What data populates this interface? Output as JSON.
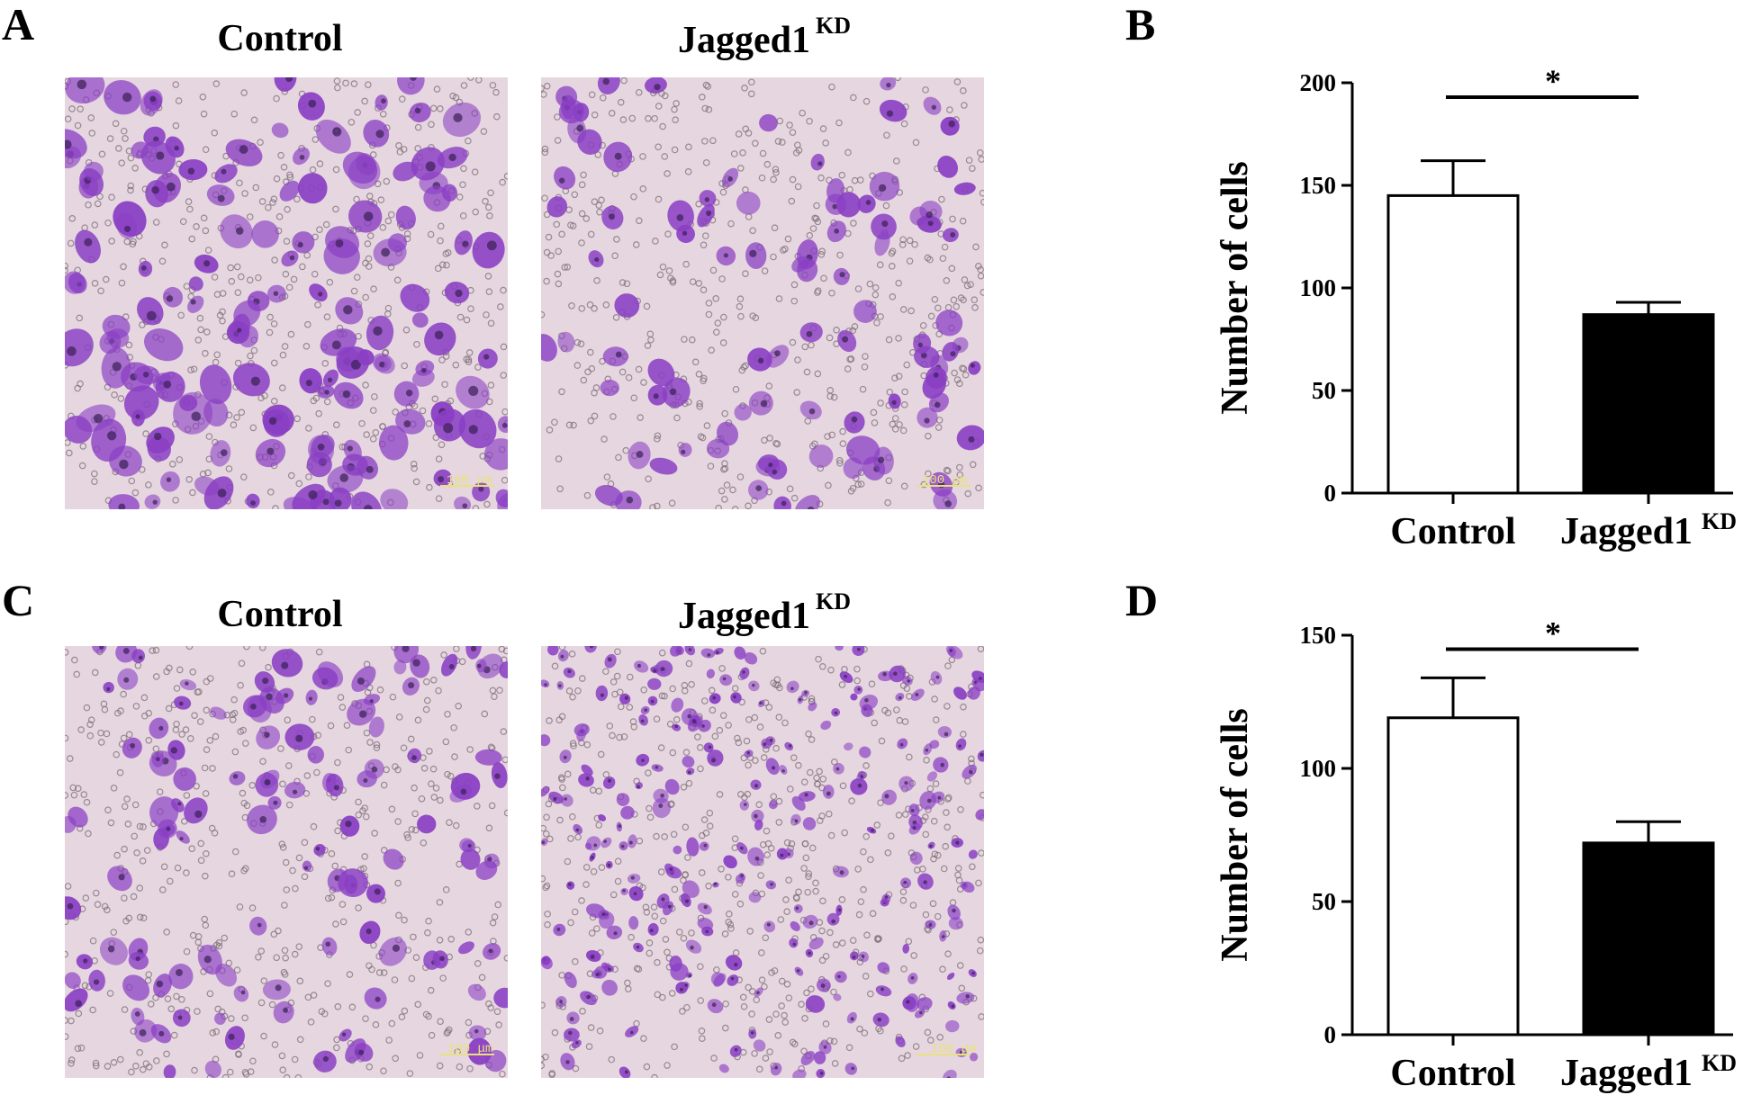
{
  "panels": {
    "A": {
      "letter": "A",
      "left_title": "Control",
      "right_title_main": "Jagged1",
      "right_title_sup": "KD",
      "left_scale": "100 μm",
      "right_scale": "100 μm"
    },
    "C": {
      "letter": "C",
      "left_title": "Control",
      "right_title_main": "Jagged1",
      "right_title_sup": "KD",
      "left_scale": "100 μm",
      "right_scale": "100 μm"
    },
    "B": {
      "letter": "B"
    },
    "D": {
      "letter": "D"
    }
  },
  "colors": {
    "stain": "#8a3fc4",
    "stain_dark": "#3a1f55",
    "background": "#e6d6df",
    "control_bar": "#ffffff",
    "kd_bar": "#000000"
  },
  "chart_data": [
    {
      "panel": "B",
      "type": "bar",
      "ylabel": "Number of cells",
      "ylim": [
        0,
        200
      ],
      "yticks": [
        0,
        50,
        100,
        150,
        200
      ],
      "categories": [
        {
          "main": "Control",
          "sup": ""
        },
        {
          "main": "Jagged1",
          "sup": "KD"
        }
      ],
      "values": [
        145,
        87
      ],
      "errors": [
        17,
        6
      ],
      "fills": [
        "#ffffff",
        "#000000"
      ],
      "significance": "*"
    },
    {
      "panel": "D",
      "type": "bar",
      "ylabel": "Number of cells",
      "ylim": [
        0,
        150
      ],
      "yticks": [
        0,
        50,
        100,
        150
      ],
      "categories": [
        {
          "main": "Control",
          "sup": ""
        },
        {
          "main": "Jagged1",
          "sup": "KD"
        }
      ],
      "values": [
        119,
        72
      ],
      "errors": [
        15,
        8
      ],
      "fills": [
        "#ffffff",
        "#000000"
      ],
      "significance": "*"
    }
  ]
}
